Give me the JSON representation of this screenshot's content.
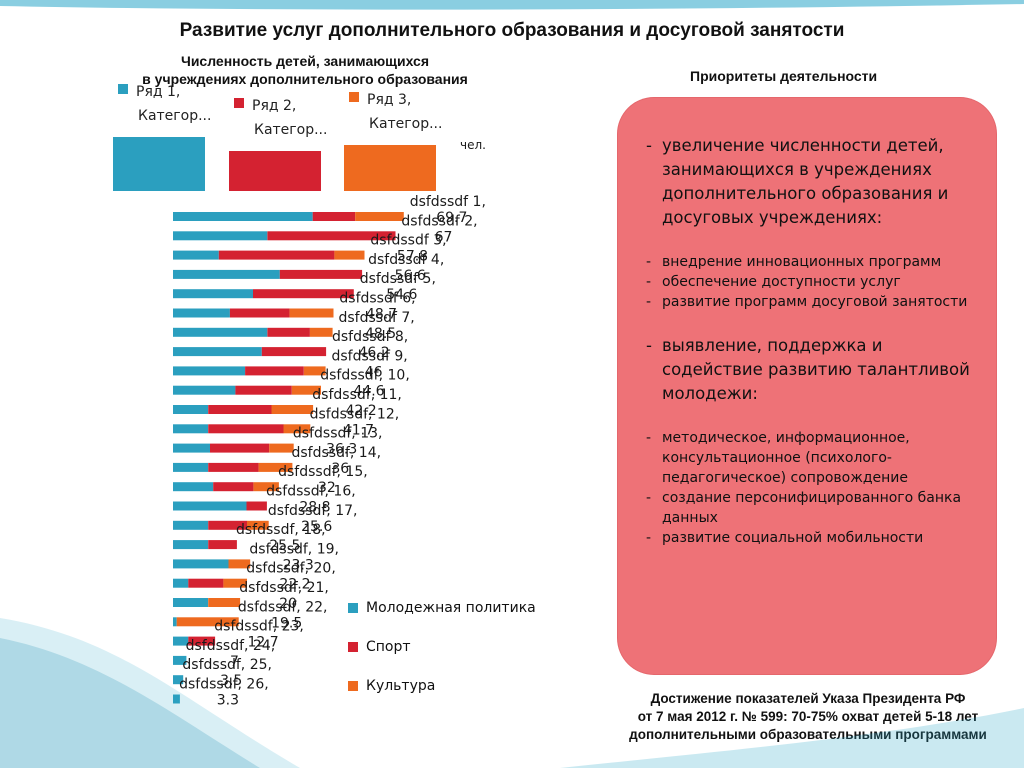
{
  "slide": {
    "title": "Развитие услуг дополнительного образования и досуговой занятости",
    "subtitle_line1": "Численность детей, занимающихся",
    "subtitle_line2": "в учреждениях дополнительного образования",
    "priorities_title": "Приоритеты деятельности",
    "unit": "чел.",
    "footer_line1": "Достижение показателей Указа Президента РФ",
    "footer_line2": "от 7 мая 2012 г. № 599: 70-75% охват детей 5-18 лет",
    "footer_line3": "дополнительными образовательными программами"
  },
  "legend_top": [
    {
      "series": "Ряд 1,",
      "category": "Категор...",
      "color": "#2b9fbf"
    },
    {
      "series": "Ряд 2,",
      "category": "Категор...",
      "color": "#d42231"
    },
    {
      "series": "Ряд 3,",
      "category": "Категор...",
      "color": "#ee6a1f"
    }
  ],
  "legend_bottom": [
    {
      "label": "Молодежная политика",
      "color": "#2b9fbf"
    },
    {
      "label": "Спорт",
      "color": "#d42231"
    },
    {
      "label": "Культура",
      "color": "#ee6a1f"
    }
  ],
  "priorities": [
    {
      "text": "увеличение численности детей, занимающихся в учреждениях дополнительного образования и досуговых учреждениях:",
      "size": "big"
    },
    {
      "text": "внедрение инновационных программ",
      "size": "small"
    },
    {
      "text": "обеспечение доступности услуг",
      "size": "small"
    },
    {
      "text": "развитие программ досуговой занятости",
      "size": "small"
    },
    {
      "text": "выявление, поддержка и содействие развитию талантливой молодежи:",
      "size": "big"
    },
    {
      "text": "методическое, информационное, консультационное (психолого-педагогическое) сопровождение",
      "size": "small"
    },
    {
      "text": "создание персонифицированного банка данных",
      "size": "small"
    },
    {
      "text": "развитие социальной мобильности",
      "size": "small"
    }
  ],
  "chart_data": {
    "type": "bar",
    "orientation": "horizontal",
    "stacked": true,
    "unit": "чел.",
    "series": [
      {
        "name": "Молодежная политика",
        "color": "#2b9fbf",
        "values": [
          30.2,
          20.4,
          9.9,
          23.1,
          17.3,
          12.3,
          20.4,
          19.2,
          15.6,
          13.5,
          7.6,
          7.6,
          8.0,
          7.6,
          8.7,
          15.9,
          7.6,
          7.6,
          12.0,
          3.3,
          7.6,
          0.8,
          3.3,
          2.9,
          2.2,
          1.5
        ]
      },
      {
        "name": "Спорт",
        "color": "#d42231",
        "values": [
          9.2,
          27.7,
          25.0,
          17.8,
          21.8,
          12.9,
          9.2,
          13.9,
          12.7,
          12.2,
          13.7,
          16.3,
          12.8,
          10.9,
          8.7,
          4.4,
          8.4,
          6.2,
          0,
          7.6,
          0,
          0,
          5.8,
          0,
          0,
          0
        ]
      },
      {
        "name": "Культура",
        "color": "#ee6a1f",
        "values": [
          10.5,
          0,
          6.5,
          0,
          0,
          9.5,
          4.9,
          0,
          4.7,
          6.3,
          9.0,
          5.8,
          5.3,
          7.3,
          5.5,
          0,
          4.7,
          0,
          4.7,
          5.1,
          6.9,
          13.4,
          0,
          0,
          0,
          0
        ]
      }
    ],
    "data_labels": [
      {
        "name": "dsfdssdf",
        "number": "1,",
        "value": "69.7"
      },
      {
        "name": "dsfdssdf",
        "number": "2,",
        "value": "67"
      },
      {
        "name": "dsfdssdf",
        "number": "3,",
        "value": "57.8"
      },
      {
        "name": "dsfdssdf",
        "number": "4,",
        "value": "56.6"
      },
      {
        "name": "dsfdssdf",
        "number": "5,",
        "value": "54.6"
      },
      {
        "name": "dsfdssdf",
        "number": "6,",
        "value": "48.7"
      },
      {
        "name": "dsfdssdf",
        "number": "7,",
        "value": "48.5"
      },
      {
        "name": "dsfdssdf",
        "number": "8,",
        "value": "46.2"
      },
      {
        "name": "dsfdssdf",
        "number": "9,",
        "value": "46"
      },
      {
        "name": "dsfdssdf,",
        "number": "10,",
        "value": "44.6"
      },
      {
        "name": "dsfdssdf,",
        "number": "11,",
        "value": "42.2"
      },
      {
        "name": "dsfdssdf,",
        "number": "12,",
        "value": "41.7"
      },
      {
        "name": "dsfdssdf,",
        "number": "13,",
        "value": "36.3"
      },
      {
        "name": "dsfdssdf,",
        "number": "14,",
        "value": "36"
      },
      {
        "name": "dsfdssdf,",
        "number": "15,",
        "value": "32"
      },
      {
        "name": "dsfdssdf,",
        "number": "16,",
        "value": "28.8"
      },
      {
        "name": "dsfdssdf,",
        "number": "17,",
        "value": "25.6"
      },
      {
        "name": "dsfdssdf,",
        "number": "18,",
        "value": "25.5"
      },
      {
        "name": "dsfdssdf,",
        "number": "19,",
        "value": "23.3"
      },
      {
        "name": "dsfdssdf,",
        "number": "20,",
        "value": "22.2"
      },
      {
        "name": "dsfdssdf,",
        "number": "21,",
        "value": "20"
      },
      {
        "name": "dsfdssdf,",
        "number": "22,",
        "value": "19.5"
      },
      {
        "name": "dsfdssdf,",
        "number": "23,",
        "value": "12.7"
      },
      {
        "name": "dsfdssdf,",
        "number": "24,",
        "value": "7"
      },
      {
        "name": "dsfdssdf,",
        "number": "25,",
        "value": "3.5"
      },
      {
        "name": "dsfdssdf,",
        "number": "26,",
        "value": "3.3"
      }
    ],
    "xlim": [
      0,
      80
    ]
  }
}
